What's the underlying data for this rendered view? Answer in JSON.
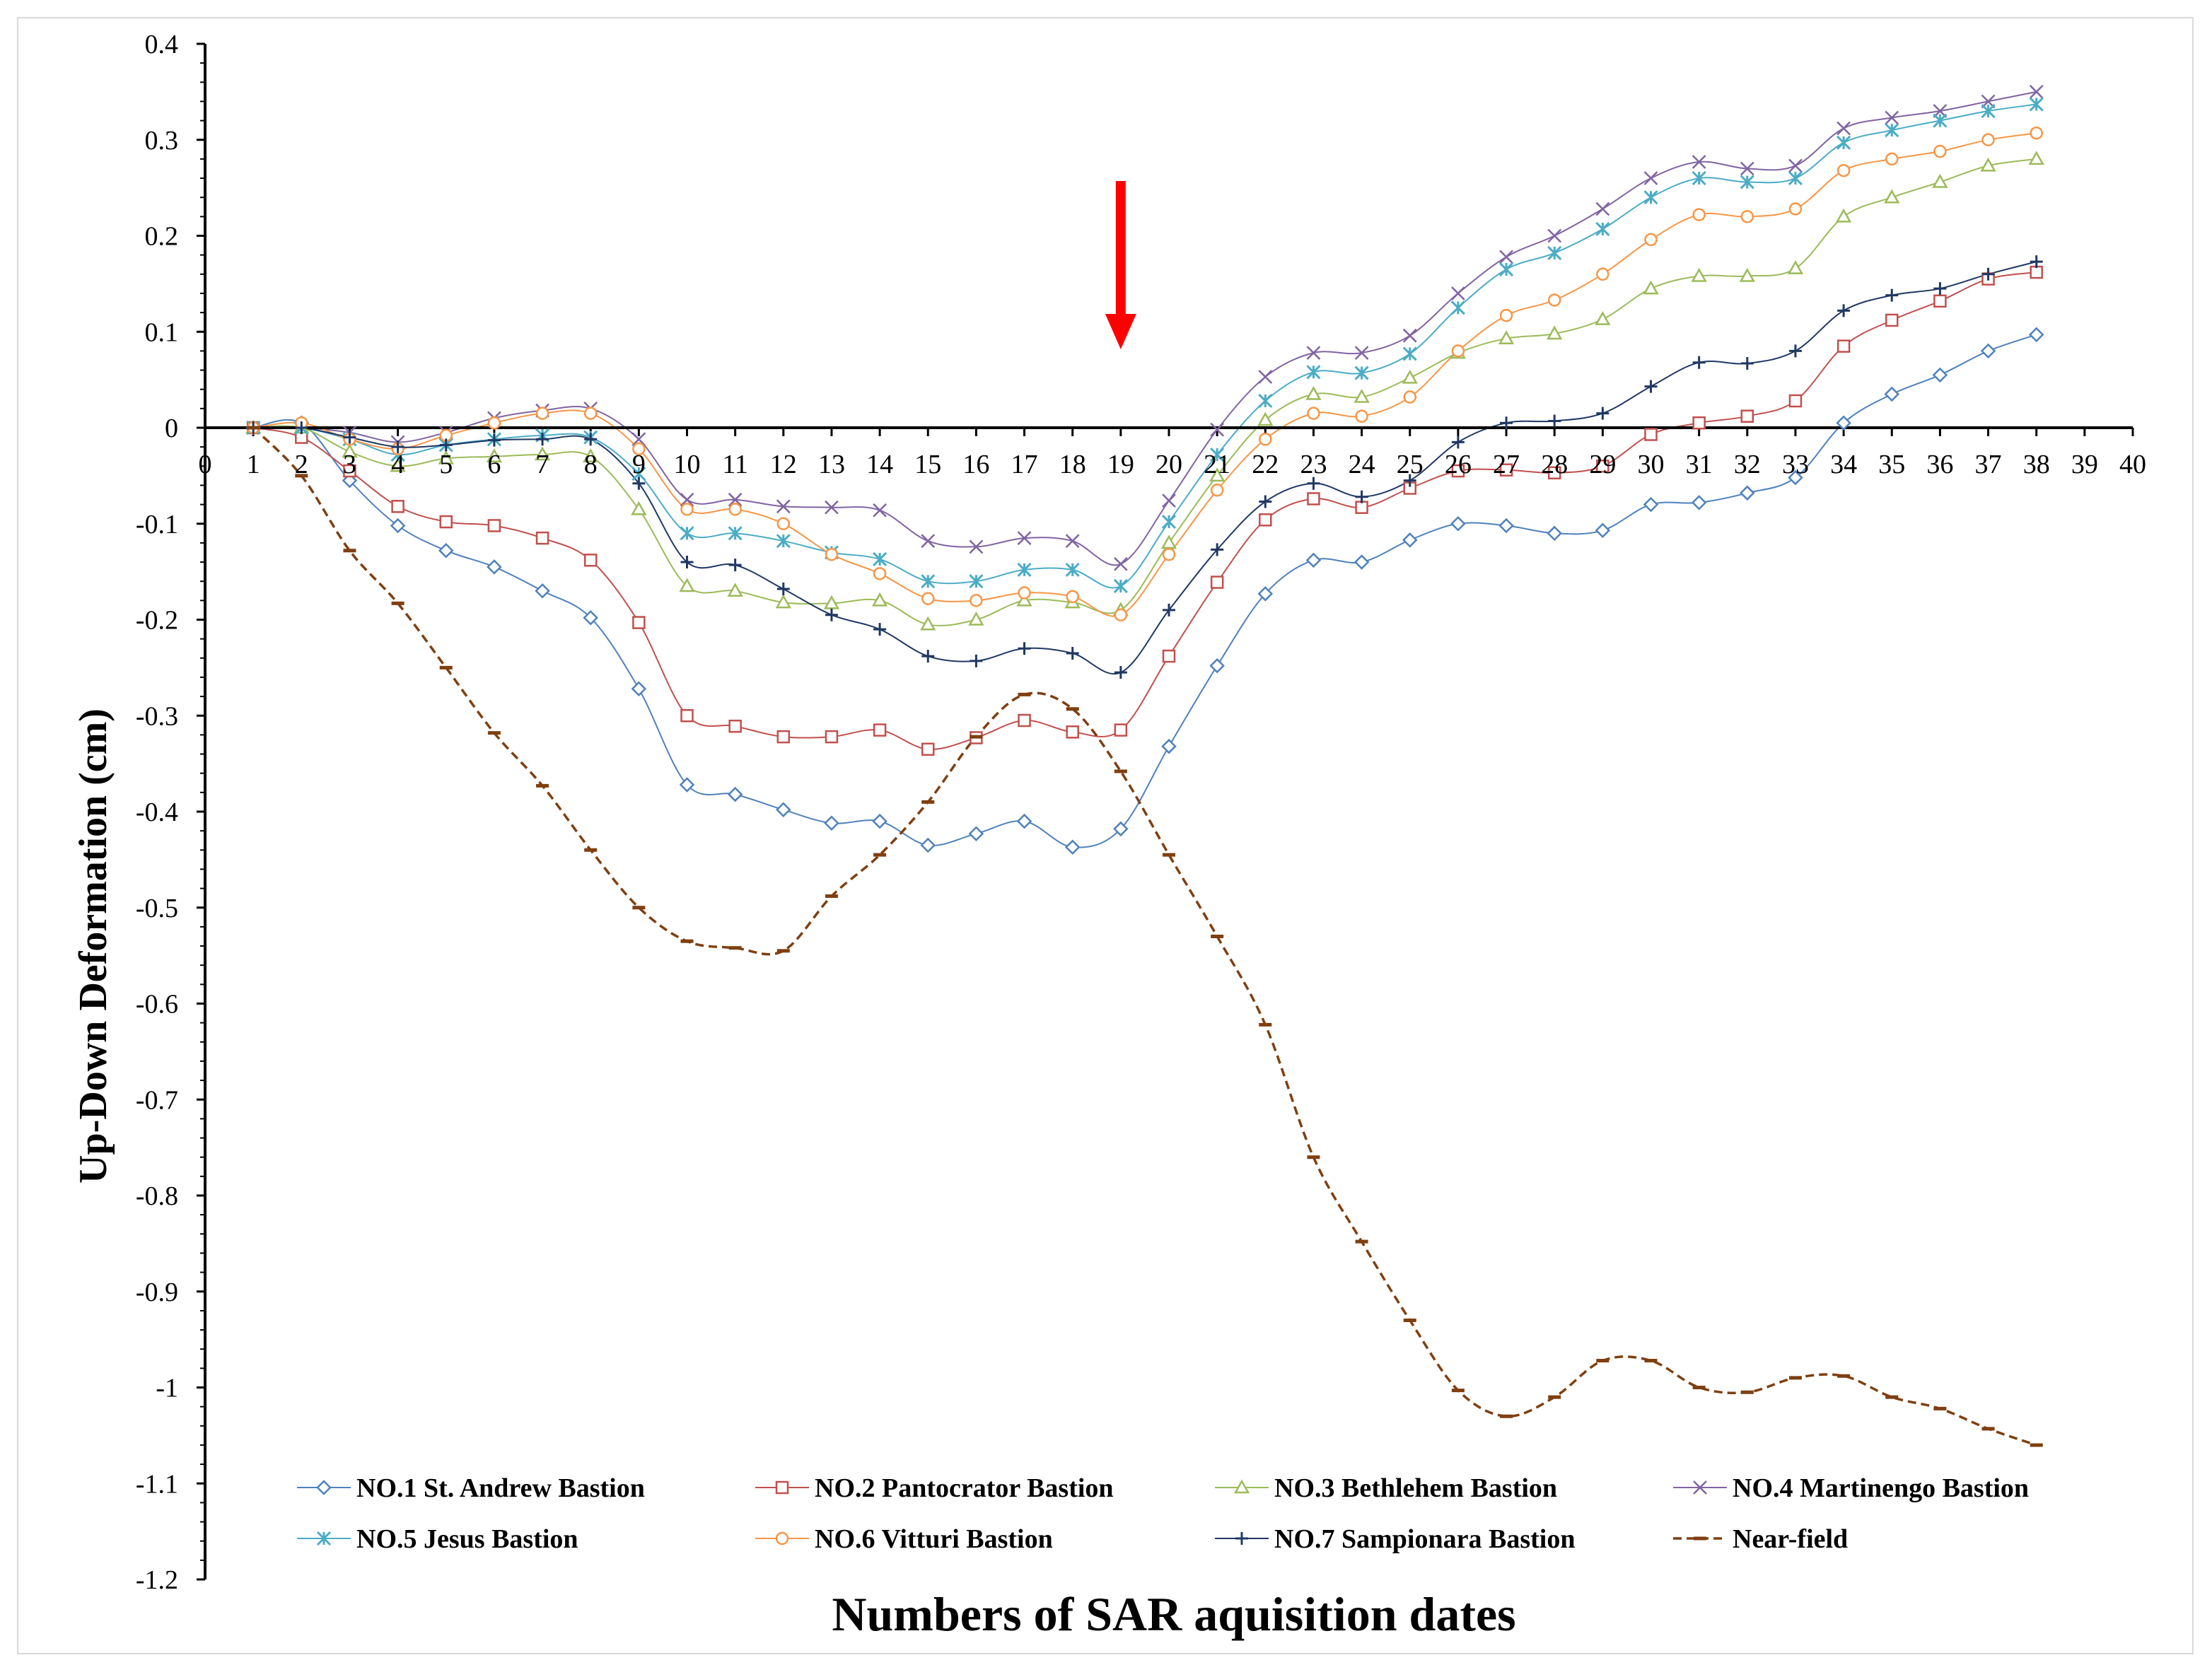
{
  "chart_data": {
    "type": "line",
    "title": "",
    "xlabel": "Numbers of SAR aquisition dates",
    "ylabel": "Up-Down Deformation (cm)",
    "xlim": [
      0,
      40
    ],
    "ylim": [
      -1.2,
      0.4
    ],
    "x_ticks": [
      0,
      1,
      2,
      3,
      4,
      5,
      6,
      7,
      8,
      9,
      10,
      11,
      12,
      13,
      14,
      15,
      16,
      17,
      18,
      19,
      20,
      21,
      22,
      23,
      24,
      25,
      26,
      27,
      28,
      29,
      30,
      31,
      32,
      33,
      34,
      35,
      36,
      37,
      38,
      39,
      40
    ],
    "y_ticks": [
      0.4,
      0.3,
      0.2,
      0.1,
      0,
      -0.1,
      -0.2,
      -0.3,
      -0.4,
      -0.5,
      -0.6,
      -0.7,
      -0.8,
      -0.9,
      -1,
      -1.1,
      -1.2
    ],
    "grid": false,
    "legend_position": "bottom",
    "annotation": {
      "type": "arrow",
      "x": 19,
      "color": "#ff0000",
      "direction": "down"
    },
    "x": [
      1,
      2,
      3,
      4,
      5,
      6,
      7,
      8,
      9,
      10,
      11,
      12,
      13,
      14,
      15,
      16,
      17,
      18,
      19,
      20,
      21,
      22,
      23,
      24,
      25,
      26,
      27,
      28,
      29,
      30,
      31,
      32,
      33,
      34,
      35,
      36,
      37,
      38
    ],
    "series": [
      {
        "name": "NO.1 St. Andrew Bastion",
        "color": "#4f81bd",
        "marker": "diamond",
        "dashed": false,
        "values": [
          0,
          0.005,
          -0.055,
          -0.102,
          -0.128,
          -0.145,
          -0.17,
          -0.198,
          -0.272,
          -0.372,
          -0.382,
          -0.398,
          -0.412,
          -0.41,
          -0.435,
          -0.423,
          -0.41,
          -0.437,
          -0.418,
          -0.332,
          -0.248,
          -0.173,
          -0.138,
          -0.14,
          -0.117,
          -0.1,
          -0.102,
          -0.11,
          -0.107,
          -0.08,
          -0.078,
          -0.068,
          -0.052,
          0.005,
          0.035,
          0.055,
          0.08,
          0.097
        ]
      },
      {
        "name": "NO.2 Pantocrator Bastion",
        "color": "#c0504d",
        "marker": "square",
        "dashed": false,
        "values": [
          0,
          -0.01,
          -0.045,
          -0.082,
          -0.098,
          -0.102,
          -0.115,
          -0.138,
          -0.203,
          -0.3,
          -0.311,
          -0.322,
          -0.322,
          -0.315,
          -0.335,
          -0.323,
          -0.305,
          -0.317,
          -0.315,
          -0.238,
          -0.161,
          -0.096,
          -0.074,
          -0.083,
          -0.063,
          -0.045,
          -0.044,
          -0.047,
          -0.04,
          -0.007,
          0.005,
          0.012,
          0.028,
          0.085,
          0.112,
          0.132,
          0.155,
          0.162
        ]
      },
      {
        "name": "NO.3 Bethlehem Bastion",
        "color": "#9bbb59",
        "marker": "triangle",
        "dashed": false,
        "values": [
          0,
          0,
          -0.025,
          -0.04,
          -0.032,
          -0.03,
          -0.028,
          -0.03,
          -0.085,
          -0.165,
          -0.17,
          -0.182,
          -0.183,
          -0.18,
          -0.205,
          -0.2,
          -0.18,
          -0.182,
          -0.19,
          -0.12,
          -0.05,
          0.008,
          0.035,
          0.032,
          0.052,
          0.078,
          0.093,
          0.098,
          0.113,
          0.145,
          0.158,
          0.158,
          0.166,
          0.22,
          0.24,
          0.256,
          0.273,
          0.28
        ]
      },
      {
        "name": "NO.4 Martinengo Bastion",
        "color": "#8064a2",
        "marker": "x",
        "dashed": false,
        "values": [
          0,
          0,
          -0.005,
          -0.015,
          -0.005,
          0.01,
          0.018,
          0.02,
          -0.012,
          -0.075,
          -0.075,
          -0.082,
          -0.083,
          -0.086,
          -0.118,
          -0.124,
          -0.115,
          -0.118,
          -0.142,
          -0.076,
          -0.002,
          0.053,
          0.078,
          0.078,
          0.096,
          0.14,
          0.178,
          0.2,
          0.228,
          0.26,
          0.277,
          0.27,
          0.273,
          0.312,
          0.323,
          0.33,
          0.34,
          0.35
        ]
      },
      {
        "name": "NO.5 Jesus Bastion",
        "color": "#4bacc6",
        "marker": "asterisk",
        "dashed": false,
        "values": [
          0,
          0,
          -0.012,
          -0.028,
          -0.018,
          -0.012,
          -0.008,
          -0.01,
          -0.048,
          -0.11,
          -0.11,
          -0.118,
          -0.13,
          -0.137,
          -0.16,
          -0.16,
          -0.148,
          -0.148,
          -0.165,
          -0.098,
          -0.028,
          0.028,
          0.058,
          0.057,
          0.077,
          0.125,
          0.165,
          0.182,
          0.207,
          0.24,
          0.26,
          0.256,
          0.26,
          0.297,
          0.31,
          0.32,
          0.33,
          0.337
        ]
      },
      {
        "name": "NO.6 Vitturi Bastion",
        "color": "#f79646",
        "marker": "circle",
        "dashed": false,
        "values": [
          0,
          0.005,
          -0.012,
          -0.022,
          -0.008,
          0.005,
          0.015,
          0.015,
          -0.022,
          -0.085,
          -0.085,
          -0.1,
          -0.132,
          -0.152,
          -0.178,
          -0.18,
          -0.172,
          -0.176,
          -0.195,
          -0.132,
          -0.065,
          -0.012,
          0.015,
          0.012,
          0.032,
          0.08,
          0.117,
          0.133,
          0.16,
          0.196,
          0.222,
          0.22,
          0.228,
          0.268,
          0.28,
          0.288,
          0.3,
          0.307
        ]
      },
      {
        "name": "NO.7 Sampionara Bastion",
        "color": "#1f3864",
        "marker": "plus",
        "dashed": false,
        "values": [
          0,
          0,
          -0.01,
          -0.02,
          -0.018,
          -0.013,
          -0.012,
          -0.012,
          -0.058,
          -0.14,
          -0.143,
          -0.168,
          -0.195,
          -0.21,
          -0.238,
          -0.243,
          -0.23,
          -0.235,
          -0.255,
          -0.19,
          -0.127,
          -0.077,
          -0.058,
          -0.072,
          -0.055,
          -0.015,
          0.005,
          0.007,
          0.015,
          0.043,
          0.068,
          0.067,
          0.08,
          0.122,
          0.138,
          0.145,
          0.16,
          0.173
        ]
      },
      {
        "name": "Near-field",
        "color": "#7f3f10",
        "marker": "dash",
        "dashed": true,
        "values": [
          0,
          -0.05,
          -0.128,
          -0.183,
          -0.25,
          -0.318,
          -0.373,
          -0.44,
          -0.5,
          -0.535,
          -0.542,
          -0.545,
          -0.488,
          -0.445,
          -0.39,
          -0.322,
          -0.278,
          -0.293,
          -0.358,
          -0.445,
          -0.53,
          -0.622,
          -0.76,
          -0.848,
          -0.93,
          -1.003,
          -1.03,
          -1.01,
          -0.972,
          -0.972,
          -1.0,
          -1.005,
          -0.99,
          -0.988,
          -1.01,
          -1.022,
          -1.043,
          -1.06
        ]
      }
    ]
  }
}
